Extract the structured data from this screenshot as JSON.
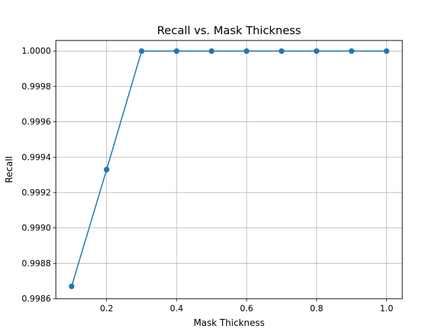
{
  "chart_data": {
    "type": "line",
    "title": "Recall vs. Mask Thickness",
    "xlabel": "Mask Thickness",
    "ylabel": "Recall",
    "x": [
      0.1,
      0.2,
      0.3,
      0.4,
      0.5,
      0.6,
      0.7,
      0.8,
      0.9,
      1.0
    ],
    "series": [
      {
        "values": [
          0.99867,
          0.99933,
          1.0,
          1.0,
          1.0,
          1.0,
          1.0,
          1.0,
          1.0,
          1.0
        ],
        "color": "#1f77b4",
        "marker": "circle"
      }
    ],
    "xlim": [
      0.055,
      1.045
    ],
    "ylim": [
      0.9986,
      1.00006
    ],
    "xticks": [
      0.2,
      0.4,
      0.6,
      0.8,
      1.0
    ],
    "xtick_labels": [
      "0.2",
      "0.4",
      "0.6",
      "0.8",
      "1.0"
    ],
    "yticks": [
      0.9986,
      0.9988,
      0.999,
      0.9992,
      0.9994,
      0.9996,
      0.9998,
      1.0
    ],
    "ytick_labels": [
      "0.9986",
      "0.9988",
      "0.9990",
      "0.9992",
      "0.9994",
      "0.9996",
      "0.9998",
      "1.0000"
    ],
    "grid": true
  }
}
